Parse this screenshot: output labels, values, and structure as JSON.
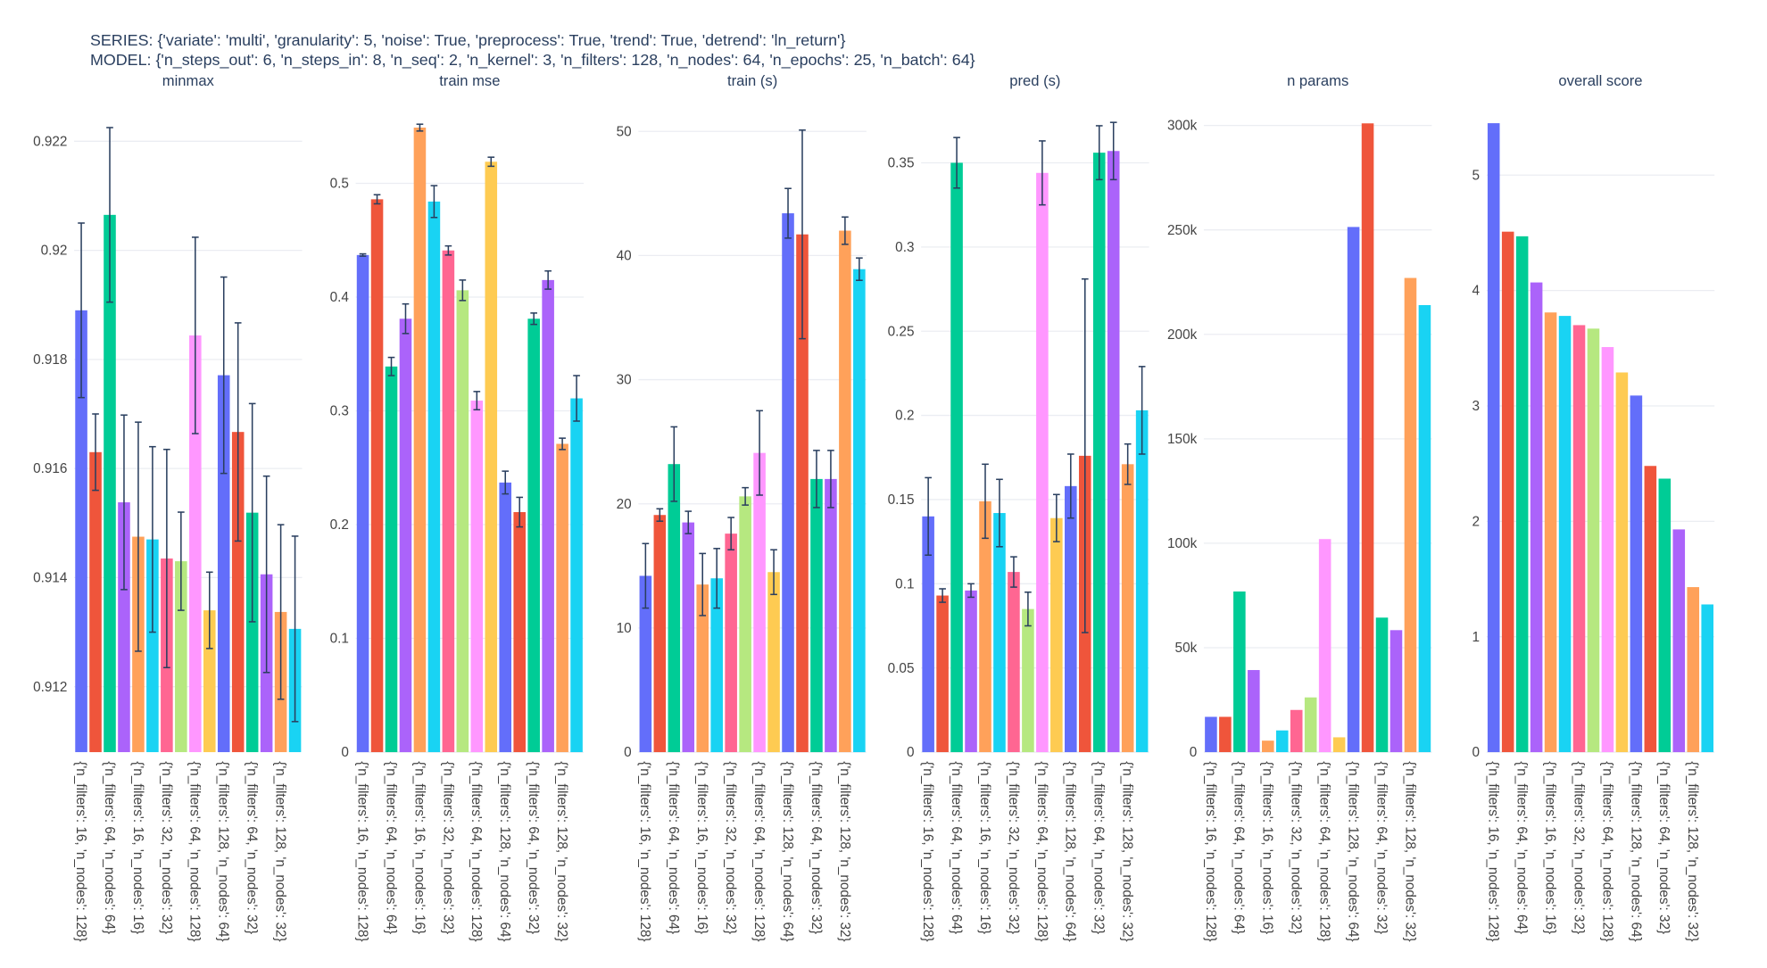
{
  "header": {
    "series": "SERIES: {'variate': 'multi', 'granularity': 5, 'noise': True, 'preprocess': True, 'trend': True, 'detrend': 'ln_return'}",
    "model": "MODEL: {'n_steps_out': 6, 'n_steps_in': 8, 'n_seq': 2, 'n_kernel': 3, 'n_filters': 128, 'n_nodes': 64, 'n_epochs': 25, 'n_batch': 64}"
  },
  "chart_data": [
    {
      "type": "bar",
      "title": "minmax",
      "categories": [
        "{'n_filters': 16, 'n_nodes': 128}",
        null,
        "{'n_filters': 64, 'n_nodes': 64}",
        null,
        "{'n_filters': 16, 'n_nodes': 16}",
        null,
        "{'n_filters': 32, 'n_nodes': 32}",
        null,
        "{'n_filters': 64, 'n_nodes': 128}",
        null,
        "{'n_filters': 128, 'n_nodes': 64}",
        null,
        "{'n_filters': 64, 'n_nodes': 32}",
        null,
        "{'n_filters': 128, 'n_nodes': 32}",
        null
      ],
      "values": [
        0.9189,
        0.9163,
        0.92065,
        0.91538,
        0.91475,
        0.9147,
        0.91435,
        0.9143,
        0.91844,
        0.9134,
        0.91771,
        0.91667,
        0.91519,
        0.91406,
        0.91337,
        0.91306
      ],
      "errors": [
        0.0016,
        0.0007,
        0.0016,
        0.0016,
        0.0021,
        0.0017,
        0.002,
        0.0009,
        0.0018,
        0.0007,
        0.0018,
        0.002,
        0.002,
        0.0018,
        0.0016,
        0.0017
      ],
      "colors": [
        "#636efa",
        "#EF553B",
        "#00cc96",
        "#ab63fa",
        "#FFA15A",
        "#19d3f3",
        "#FF6692",
        "#B6E880",
        "#FF97FF",
        "#FECB52",
        "#636efa",
        "#EF553B",
        "#00cc96",
        "#ab63fa",
        "#FFA15A",
        "#19d3f3"
      ],
      "ylim": [
        0.9108,
        0.9225
      ],
      "yticks": [
        0.912,
        0.914,
        0.916,
        0.918,
        0.92,
        0.922
      ],
      "grid": true
    },
    {
      "type": "bar",
      "title": "train mse",
      "categories": [
        "{'n_filters': 16, 'n_nodes': 128}",
        null,
        "{'n_filters': 64, 'n_nodes': 64}",
        null,
        "{'n_filters': 16, 'n_nodes': 16}",
        null,
        "{'n_filters': 32, 'n_nodes': 32}",
        null,
        "{'n_filters': 64, 'n_nodes': 128}",
        null,
        "{'n_filters': 128, 'n_nodes': 64}",
        null,
        "{'n_filters': 64, 'n_nodes': 32}",
        null,
        "{'n_filters': 128, 'n_nodes': 32}",
        null
      ],
      "values": [
        0.437,
        0.486,
        0.339,
        0.381,
        0.549,
        0.484,
        0.441,
        0.406,
        0.309,
        0.519,
        0.237,
        0.211,
        0.381,
        0.415,
        0.271,
        0.311
      ],
      "errors": [
        0.001,
        0.004,
        0.008,
        0.013,
        0.003,
        0.014,
        0.004,
        0.009,
        0.008,
        0.004,
        0.01,
        0.013,
        0.005,
        0.008,
        0.005,
        0.02
      ],
      "colors": [
        "#636efa",
        "#EF553B",
        "#00cc96",
        "#ab63fa",
        "#FFA15A",
        "#19d3f3",
        "#FF6692",
        "#B6E880",
        "#FF97FF",
        "#FECB52",
        "#636efa",
        "#EF553B",
        "#00cc96",
        "#ab63fa",
        "#FFA15A",
        "#19d3f3"
      ],
      "ylim": [
        0,
        0.561
      ],
      "yticks": [
        0,
        0.1,
        0.2,
        0.3,
        0.4,
        0.5
      ],
      "grid": true
    },
    {
      "type": "bar",
      "title": "train (s)",
      "categories": [
        "{'n_filters': 16, 'n_nodes': 128}",
        null,
        "{'n_filters': 64, 'n_nodes': 64}",
        null,
        "{'n_filters': 16, 'n_nodes': 16}",
        null,
        "{'n_filters': 32, 'n_nodes': 32}",
        null,
        "{'n_filters': 64, 'n_nodes': 128}",
        null,
        "{'n_filters': 128, 'n_nodes': 64}",
        null,
        "{'n_filters': 64, 'n_nodes': 32}",
        null,
        "{'n_filters': 128, 'n_nodes': 32}",
        null
      ],
      "values": [
        14.2,
        19.1,
        23.2,
        18.5,
        13.5,
        14.0,
        17.6,
        20.6,
        24.1,
        14.5,
        43.4,
        41.7,
        22,
        22,
        42,
        38.9
      ],
      "errors": [
        2.6,
        0.5,
        3,
        0.9,
        2.5,
        2.4,
        1.3,
        0.7,
        3.4,
        1.8,
        2,
        8.4,
        2.3,
        2.3,
        1.1,
        0.9
      ],
      "colors": [
        "#636efa",
        "#EF553B",
        "#00cc96",
        "#ab63fa",
        "#FFA15A",
        "#19d3f3",
        "#FF6692",
        "#B6E880",
        "#FF97FF",
        "#FECB52",
        "#636efa",
        "#EF553B",
        "#00cc96",
        "#ab63fa",
        "#FFA15A",
        "#19d3f3"
      ],
      "ylim": [
        0,
        51.4
      ],
      "yticks": [
        0,
        10,
        20,
        30,
        40,
        50
      ],
      "grid": true
    },
    {
      "type": "bar",
      "title": "pred (s)",
      "categories": [
        "{'n_filters': 16, 'n_nodes': 128}",
        null,
        "{'n_filters': 64, 'n_nodes': 64}",
        null,
        "{'n_filters': 16, 'n_nodes': 16}",
        null,
        "{'n_filters': 32, 'n_nodes': 32}",
        null,
        "{'n_filters': 64, 'n_nodes': 128}",
        null,
        "{'n_filters': 128, 'n_nodes': 64}",
        null,
        "{'n_filters': 64, 'n_nodes': 32}",
        null,
        "{'n_filters': 128, 'n_nodes': 32}",
        null
      ],
      "values": [
        0.14,
        0.093,
        0.35,
        0.096,
        0.149,
        0.142,
        0.107,
        0.085,
        0.344,
        0.139,
        0.158,
        0.176,
        0.356,
        0.357,
        0.171,
        0.203
      ],
      "errors": [
        0.023,
        0.004,
        0.015,
        0.004,
        0.022,
        0.02,
        0.009,
        0.01,
        0.019,
        0.014,
        0.019,
        0.105,
        0.016,
        0.017,
        0.012,
        0.026
      ],
      "colors": [
        "#636efa",
        "#EF553B",
        "#00cc96",
        "#ab63fa",
        "#FFA15A",
        "#19d3f3",
        "#FF6692",
        "#B6E880",
        "#FF97FF",
        "#FECB52",
        "#636efa",
        "#EF553B",
        "#00cc96",
        "#ab63fa",
        "#FFA15A",
        "#19d3f3"
      ],
      "ylim": [
        0,
        0.379
      ],
      "yticks": [
        0,
        0.05,
        0.1,
        0.15,
        0.2,
        0.25,
        0.3,
        0.35
      ],
      "grid": true
    },
    {
      "type": "bar",
      "title": "n params",
      "categories": [
        "{'n_filters': 16, 'n_nodes': 128}",
        null,
        "{'n_filters': 64, 'n_nodes': 64}",
        null,
        "{'n_filters': 16, 'n_nodes': 16}",
        null,
        "{'n_filters': 32, 'n_nodes': 32}",
        null,
        "{'n_filters': 64, 'n_nodes': 128}",
        null,
        "{'n_filters': 128, 'n_nodes': 64}",
        null,
        "{'n_filters': 64, 'n_nodes': 32}",
        null,
        "{'n_filters': 128, 'n_nodes': 32}",
        null
      ],
      "values": [
        16900,
        16900,
        76900,
        39300,
        5500,
        10400,
        20200,
        26200,
        102000,
        7100,
        251400,
        301000,
        64400,
        58400,
        227000,
        214000
      ],
      "colors": [
        "#636efa",
        "#EF553B",
        "#00cc96",
        "#ab63fa",
        "#FFA15A",
        "#19d3f3",
        "#FF6692",
        "#B6E880",
        "#FF97FF",
        "#FECB52",
        "#636efa",
        "#EF553B",
        "#00cc96",
        "#ab63fa",
        "#FFA15A",
        "#19d3f3"
      ],
      "ylim": [
        0,
        305500
      ],
      "yticks": [
        0,
        {
          "value": 50000,
          "label": "50k"
        },
        {
          "value": 100000,
          "label": "100k"
        },
        {
          "value": 150000,
          "label": "150k"
        },
        {
          "value": 200000,
          "label": "200k"
        },
        {
          "value": 250000,
          "label": "250k"
        },
        {
          "value": 300000,
          "label": "300k"
        }
      ],
      "grid": true
    },
    {
      "type": "bar",
      "title": "overall score",
      "categories": [
        "{'n_filters': 16, 'n_nodes': 128}",
        null,
        "{'n_filters': 64, 'n_nodes': 64}",
        null,
        "{'n_filters': 16, 'n_nodes': 16}",
        null,
        "{'n_filters': 32, 'n_nodes': 32}",
        null,
        "{'n_filters': 64, 'n_nodes': 128}",
        null,
        "{'n_filters': 128, 'n_nodes': 64}",
        null,
        "{'n_filters': 64, 'n_nodes': 32}",
        null,
        "{'n_filters': 128, 'n_nodes': 32}",
        null
      ],
      "values": [
        5.45,
        4.51,
        4.47,
        4.07,
        3.81,
        3.78,
        3.7,
        3.67,
        3.51,
        3.29,
        3.09,
        2.48,
        2.37,
        1.93,
        1.43,
        1.28
      ],
      "colors": [
        "#636efa",
        "#EF553B",
        "#00cc96",
        "#ab63fa",
        "#FFA15A",
        "#19d3f3",
        "#FF6692",
        "#B6E880",
        "#FF97FF",
        "#FECB52",
        "#636efa",
        "#EF553B",
        "#00cc96",
        "#ab63fa",
        "#FFA15A",
        "#19d3f3"
      ],
      "ylim": [
        0,
        5.53
      ],
      "yticks": [
        0,
        1,
        2,
        3,
        4,
        5
      ],
      "grid": true
    }
  ]
}
